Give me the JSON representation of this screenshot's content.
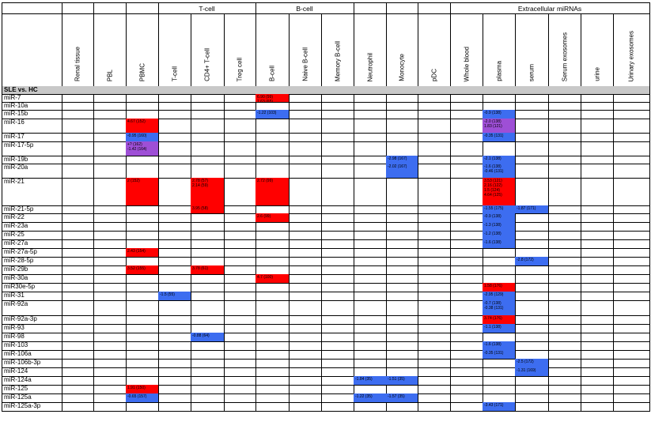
{
  "header_groups": [
    {
      "label": "",
      "span": 1
    },
    {
      "label": "",
      "span": 1
    },
    {
      "label": "",
      "span": 1
    },
    {
      "label": "",
      "span": 1
    },
    {
      "label": "T-cell",
      "span": 3
    },
    {
      "label": "B-cell",
      "span": 3
    },
    {
      "label": "",
      "span": 1
    },
    {
      "label": "",
      "span": 1
    },
    {
      "label": "",
      "span": 1
    },
    {
      "label": "Extracellular miRNAs",
      "span": 6
    }
  ],
  "columns": [
    "Renal tissue",
    "PBL",
    "PBMC",
    "T-cell",
    "CD4+ T-cell",
    "Treg cell",
    "B-cell",
    "Naive B-cell",
    "Memory B-cell",
    "Neutrophil",
    "Monocyte",
    "pDC",
    "Whole blood",
    "plasma",
    "serum",
    "Serum exosomes",
    "urine",
    "Urinary exosomes"
  ],
  "section_label": "SLE vs. HC",
  "colors": {
    "up": "#ff0000",
    "down": "#3d6df0",
    "mixed": "#9e4fd6",
    "section": "#c8c8c8",
    "border": "#000000"
  },
  "rows": [
    {
      "label": "miR-7",
      "cells": {
        "6": {
          "c": "up",
          "v": [
            "6.90 (99)",
            "1.63 (65)"
          ]
        }
      }
    },
    {
      "label": "miR-10a",
      "cells": {}
    },
    {
      "label": "miR-15b",
      "cells": {
        "6": {
          "c": "down",
          "v": [
            "-1.22 (103)"
          ]
        },
        "13": {
          "c": "down",
          "v": [
            "-0.9 (138)"
          ]
        }
      }
    },
    {
      "label": "miR-16",
      "cells": {
        "2": {
          "c": "up",
          "v": [
            "4.67 (152)"
          ]
        },
        "13": {
          "c": "mixed",
          "v": [
            "-2.0 (138)",
            "1.83 (121)"
          ]
        }
      }
    },
    {
      "label": "miR-17",
      "cells": {
        "2": {
          "c": "down",
          "v": [
            "-0.95 (160)"
          ]
        },
        "13": {
          "c": "down",
          "v": [
            "-0.35 (131)"
          ]
        }
      }
    },
    {
      "label": "miR-17-5p",
      "cells": {
        "2": {
          "c": "mixed",
          "v": [
            "+? (162)",
            "-1.42 (164)"
          ]
        }
      }
    },
    {
      "label": "miR-19b",
      "cells": {
        "10": {
          "c": "down",
          "v": [
            "-2.98 (167)"
          ]
        },
        "13": {
          "c": "down",
          "v": [
            "-2.1 (138)"
          ]
        }
      }
    },
    {
      "label": "miR-20a",
      "cells": {
        "10": {
          "c": "down",
          "v": [
            "-2.02 (167)"
          ]
        },
        "13": {
          "c": "down",
          "v": [
            "-1.6 (138)",
            "-0.46 (131)"
          ]
        }
      }
    },
    {
      "label": "miR-21",
      "cells": {
        "2": {
          "c": "up",
          "v": [
            "2 (152)"
          ]
        },
        "4": {
          "c": "up",
          "v": [
            "2.78 (57)",
            "2.14 (59)"
          ]
        },
        "6": {
          "c": "up",
          "v": [
            "2.72 (99)"
          ]
        },
        "13": {
          "c": "up",
          "v": [
            "3.53 (121)",
            "2.16 (122)",
            "1.5 (124)",
            "4.64 (125)"
          ]
        }
      }
    },
    {
      "label": "miR-21-5p",
      "cells": {
        "4": {
          "c": "up",
          "v": [
            "3.95 (58)"
          ]
        },
        "13": {
          "c": "down",
          "v": [
            "-1.55 (175)"
          ]
        },
        "14": {
          "c": "down",
          "v": [
            "-1.87 (171)"
          ]
        }
      }
    },
    {
      "label": "miR-22",
      "cells": {
        "6": {
          "c": "up",
          "v": [
            "2.6 (99)"
          ]
        },
        "13": {
          "c": "down",
          "v": [
            "-0.9 (138)"
          ]
        }
      }
    },
    {
      "label": "miR-23a",
      "cells": {
        "13": {
          "c": "down",
          "v": [
            "-1.3 (138)"
          ]
        }
      }
    },
    {
      "label": "miR-25",
      "cells": {
        "13": {
          "c": "down",
          "v": [
            "-1.2 (138)"
          ]
        }
      }
    },
    {
      "label": "miR-27a",
      "cells": {
        "13": {
          "c": "down",
          "v": [
            "-1.6 (138)"
          ]
        }
      }
    },
    {
      "label": "miR-27a-5p",
      "cells": {
        "2": {
          "c": "up",
          "v": [
            "2.43 (154)"
          ]
        }
      }
    },
    {
      "label": "miR-28-5p",
      "cells": {
        "14": {
          "c": "down",
          "v": [
            "-2.8 (172)"
          ]
        }
      }
    },
    {
      "label": "miR-29b",
      "cells": {
        "2": {
          "c": "up",
          "v": [
            "3.52 (155)"
          ]
        },
        "4": {
          "c": "up",
          "v": [
            "3.78 (61)"
          ]
        }
      }
    },
    {
      "label": "miR-30a",
      "cells": {
        "6": {
          "c": "up",
          "v": [
            "4.7 (100)"
          ]
        }
      }
    },
    {
      "label": "miR30e-5p",
      "cells": {
        "13": {
          "c": "up",
          "v": [
            "1.58 (176)"
          ]
        }
      }
    },
    {
      "label": "miR-31",
      "cells": {
        "3": {
          "c": "down",
          "v": [
            "-1.5 (55)"
          ]
        },
        "13": {
          "c": "down",
          "v": [
            "-2.95 (129)"
          ]
        }
      }
    },
    {
      "label": "miR-92a",
      "cells": {
        "13": {
          "c": "down",
          "v": [
            "-0.7 (138)",
            "-0.38 (131)"
          ]
        }
      }
    },
    {
      "label": "miR-92a-3p",
      "cells": {
        "13": {
          "c": "up",
          "v": [
            "3.74 (176)"
          ]
        }
      }
    },
    {
      "label": "miR-93",
      "cells": {
        "13": {
          "c": "down",
          "v": [
            "-1.1 (138)"
          ]
        }
      }
    },
    {
      "label": "miR-98",
      "cells": {
        "4": {
          "c": "down",
          "v": [
            "-0.88 (64)"
          ]
        }
      }
    },
    {
      "label": "miR-103",
      "cells": {
        "13": {
          "c": "down",
          "v": [
            "-1.6 (138)"
          ]
        }
      }
    },
    {
      "label": "miR-106a",
      "cells": {
        "13": {
          "c": "down",
          "v": [
            "-0.35 (131)"
          ]
        }
      }
    },
    {
      "label": "miR-106b-3p",
      "cells": {
        "14": {
          "c": "down",
          "v": [
            "-2.5 (172)"
          ]
        }
      }
    },
    {
      "label": "miR-124",
      "cells": {
        "14": {
          "c": "down",
          "v": [
            "-1.31 (169)"
          ]
        }
      }
    },
    {
      "label": "miR-124a",
      "cells": {
        "9": {
          "c": "down",
          "v": [
            "-1.84 (35)"
          ]
        },
        "10": {
          "c": "down",
          "v": [
            "-1.51 (35)"
          ]
        }
      }
    },
    {
      "label": "miR-125",
      "cells": {
        "2": {
          "c": "up",
          "v": [
            "1.91 (150)"
          ]
        }
      }
    },
    {
      "label": "miR-125a",
      "cells": {
        "2": {
          "c": "down",
          "v": [
            "-0.65 (157)"
          ]
        },
        "9": {
          "c": "down",
          "v": [
            "-1.22 (35)"
          ]
        },
        "10": {
          "c": "down",
          "v": [
            "-1.57 (35)"
          ]
        }
      }
    },
    {
      "label": "miR-125a-3p",
      "cells": {
        "13": {
          "c": "down",
          "v": [
            "-3.43 (171)"
          ]
        }
      }
    }
  ]
}
